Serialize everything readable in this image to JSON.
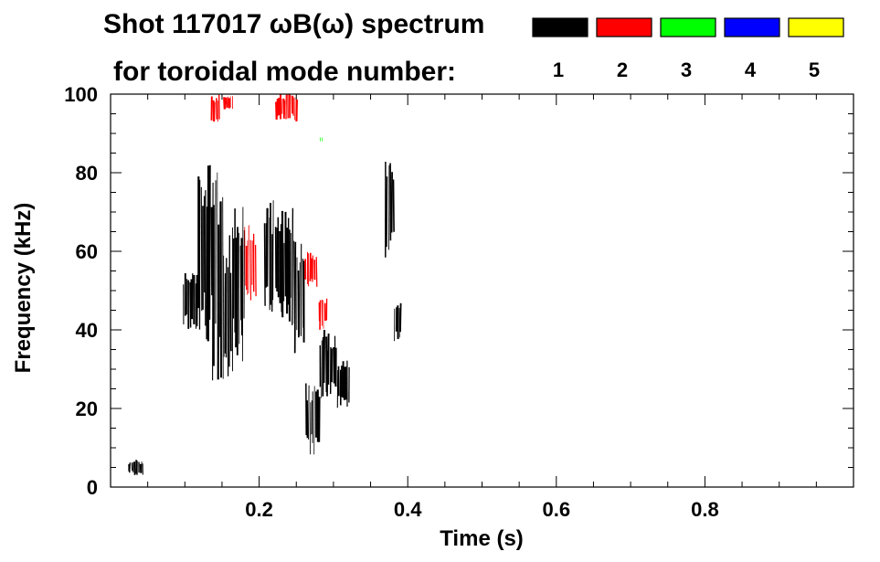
{
  "chart_data": {
    "type": "heatmap",
    "title_line1": "Shot 117017 ωB(ω) spectrum",
    "title_line2": "for toroidal mode number:",
    "xlabel": "Time (s)",
    "ylabel": "Frequency (kHz)",
    "xlim": [
      0.0,
      1.0
    ],
    "ylim": [
      0,
      100
    ],
    "xticks": [
      0.2,
      0.4,
      0.6,
      0.8
    ],
    "xtick_labels": [
      "0.2",
      "0.4",
      "0.6",
      "0.8"
    ],
    "yticks": [
      0,
      20,
      40,
      60,
      80,
      100
    ],
    "ytick_labels": [
      "0",
      "20",
      "40",
      "60",
      "80",
      "100"
    ],
    "grid": false,
    "legend_position": "top-right",
    "modes": [
      {
        "label": "1",
        "color": "#000000"
      },
      {
        "label": "2",
        "color": "#ff0000"
      },
      {
        "label": "3",
        "color": "#00ff00"
      },
      {
        "label": "4",
        "color": "#0000ff"
      },
      {
        "label": "5",
        "color": "#ffff00"
      }
    ],
    "regions": [
      {
        "mode": "1",
        "t": [
          0.098,
          0.118
        ],
        "f": [
          40,
          56
        ]
      },
      {
        "mode": "1",
        "t": [
          0.118,
          0.137
        ],
        "f": [
          36,
          84
        ]
      },
      {
        "mode": "1",
        "t": [
          0.137,
          0.152
        ],
        "f": [
          27,
          82
        ]
      },
      {
        "mode": "1",
        "t": [
          0.152,
          0.165
        ],
        "f": [
          20,
          69
        ]
      },
      {
        "mode": "1",
        "t": [
          0.165,
          0.182
        ],
        "f": [
          31,
          73
        ]
      },
      {
        "mode": "1",
        "t": [
          0.207,
          0.227
        ],
        "f": [
          44,
          73
        ]
      },
      {
        "mode": "1",
        "t": [
          0.227,
          0.248
        ],
        "f": [
          40,
          71
        ]
      },
      {
        "mode": "1",
        "t": [
          0.248,
          0.262
        ],
        "f": [
          33,
          64
        ]
      },
      {
        "mode": "1",
        "t": [
          0.262,
          0.282
        ],
        "f": [
          8,
          27
        ]
      },
      {
        "mode": "1",
        "t": [
          0.282,
          0.305
        ],
        "f": [
          22,
          40
        ]
      },
      {
        "mode": "1",
        "t": [
          0.305,
          0.322
        ],
        "f": [
          20,
          33
        ]
      },
      {
        "mode": "1",
        "t": [
          0.37,
          0.382
        ],
        "f": [
          58,
          84
        ]
      },
      {
        "mode": "1",
        "t": [
          0.382,
          0.392
        ],
        "f": [
          37,
          49
        ]
      },
      {
        "mode": "1",
        "t": [
          0.024,
          0.045
        ],
        "f": [
          3,
          7
        ]
      },
      {
        "mode": "2",
        "t": [
          0.136,
          0.147
        ],
        "f": [
          93,
          100
        ]
      },
      {
        "mode": "2",
        "t": [
          0.152,
          0.165
        ],
        "f": [
          96,
          100
        ]
      },
      {
        "mode": "2",
        "t": [
          0.18,
          0.196
        ],
        "f": [
          46,
          67
        ]
      },
      {
        "mode": "2",
        "t": [
          0.222,
          0.252
        ],
        "f": [
          93,
          100
        ]
      },
      {
        "mode": "2",
        "t": [
          0.262,
          0.278
        ],
        "f": [
          51,
          60
        ]
      },
      {
        "mode": "2",
        "t": [
          0.28,
          0.292
        ],
        "f": [
          40,
          49
        ]
      },
      {
        "mode": "3",
        "t": [
          0.282,
          0.286
        ],
        "f": [
          88,
          89
        ]
      }
    ]
  }
}
